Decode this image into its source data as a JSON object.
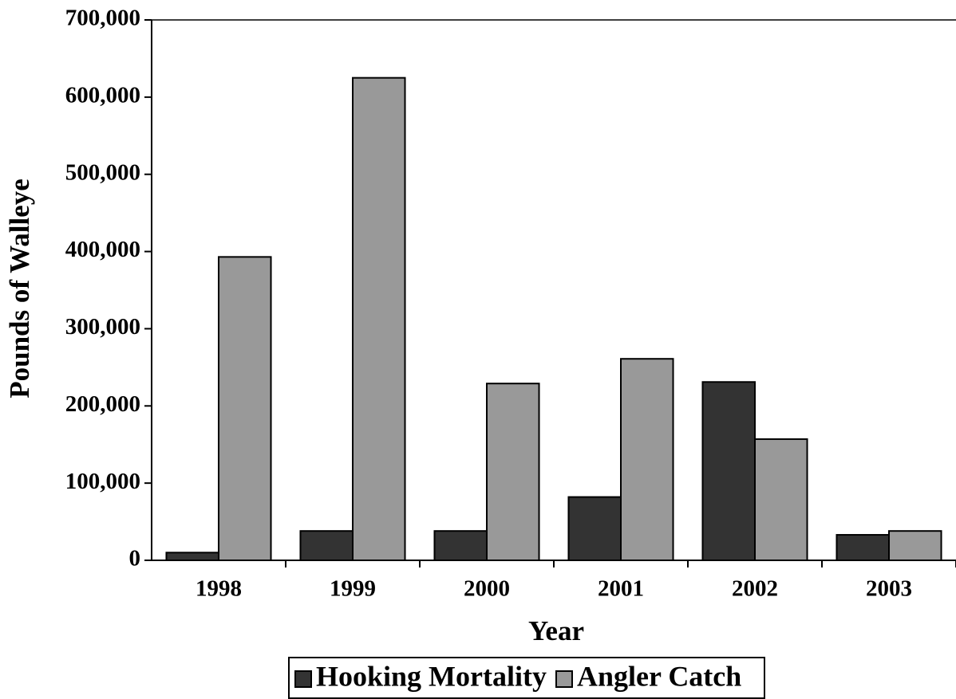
{
  "chart_data": {
    "type": "bar",
    "x_label": "Year",
    "y_label": "Pounds of Walleye",
    "categories": [
      "1998",
      "1999",
      "2000",
      "2001",
      "2002",
      "2003"
    ],
    "series": [
      {
        "name": "Hooking Mortality",
        "color": "#333333",
        "values": [
          10000,
          38000,
          38000,
          82000,
          231000,
          33000
        ]
      },
      {
        "name": "Angler Catch",
        "color": "#999999",
        "values": [
          393000,
          625000,
          229000,
          261000,
          157000,
          38000
        ]
      }
    ],
    "ylim": [
      0,
      700000
    ],
    "yticks": [
      0,
      {
        "value": 100000,
        "label": "100,000"
      },
      {
        "value": 200000,
        "label": "200,000"
      },
      {
        "value": 300000,
        "label": "300,000"
      },
      {
        "value": 400000,
        "label": "400,000"
      },
      {
        "value": 500000,
        "label": "500,000"
      },
      {
        "value": 600000,
        "label": "600,000"
      },
      {
        "value": 700000,
        "label": "700,000"
      }
    ],
    "legend": "bottom",
    "grid": false
  }
}
